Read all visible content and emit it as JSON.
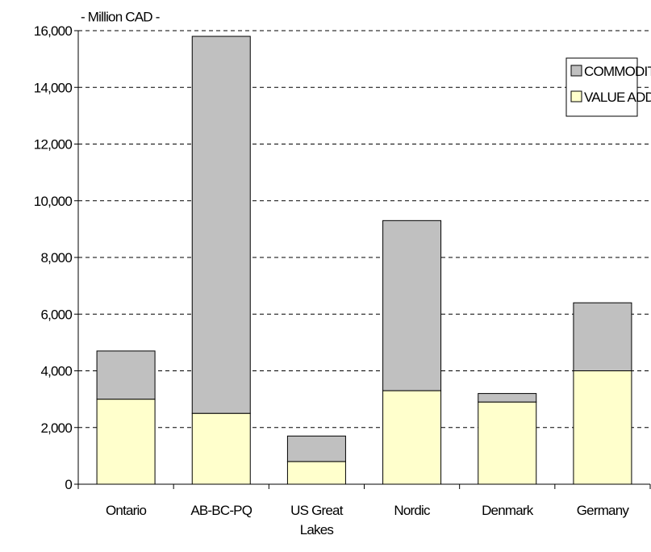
{
  "chart_data": {
    "type": "stacked_bar",
    "y_label": "- Million CAD -",
    "categories": [
      "Ontario",
      "AB-BC-PQ",
      "US Great Lakes",
      "Nordic",
      "Denmark",
      "Germany"
    ],
    "series": [
      {
        "name": "VALUE ADDED",
        "color": "#ffffcc",
        "values": [
          3000,
          2500,
          800,
          3300,
          2900,
          4000
        ]
      },
      {
        "name": "COMMODITIES",
        "color": "#c0c0c0",
        "values": [
          1700,
          13300,
          900,
          6000,
          300,
          2400
        ]
      }
    ],
    "ylim": [
      0,
      16000
    ],
    "yticks": [
      0,
      {
        "value": 2000,
        "label": "2,000"
      },
      {
        "value": 4000,
        "label": "4,000"
      },
      {
        "value": 6000,
        "label": "6,000"
      },
      {
        "value": 8000,
        "label": "8,000"
      },
      {
        "value": 10000,
        "label": "10,000"
      },
      {
        "value": 12000,
        "label": "12,000"
      },
      {
        "value": 14000,
        "label": "14,000"
      },
      {
        "value": 16000,
        "label": "16,000"
      }
    ],
    "grid": true,
    "legend": "upper right"
  }
}
